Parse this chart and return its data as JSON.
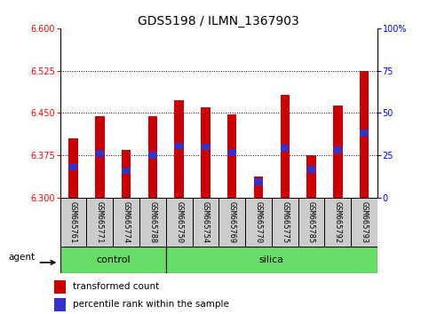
{
  "title": "GDS5198 / ILMN_1367903",
  "samples": [
    "GSM665761",
    "GSM665771",
    "GSM665774",
    "GSM665788",
    "GSM665750",
    "GSM665754",
    "GSM665769",
    "GSM665770",
    "GSM665775",
    "GSM665785",
    "GSM665792",
    "GSM665793"
  ],
  "red_values": [
    6.405,
    6.445,
    6.385,
    6.445,
    6.473,
    6.46,
    6.447,
    6.338,
    6.482,
    6.375,
    6.463,
    6.525
  ],
  "blue_values": [
    6.355,
    6.378,
    6.348,
    6.375,
    6.392,
    6.39,
    6.38,
    6.328,
    6.388,
    6.35,
    6.385,
    6.415
  ],
  "ymin": 6.3,
  "ymax": 6.6,
  "yticks_left": [
    6.3,
    6.375,
    6.45,
    6.525,
    6.6
  ],
  "yticks_right": [
    0,
    25,
    50,
    75,
    100
  ],
  "bar_color": "#cc0000",
  "blue_color": "#3333cc",
  "bar_width": 0.35,
  "control_color": "#66dd66",
  "xlabel_bg": "#cccccc",
  "title_fontsize": 10,
  "tick_fontsize": 7,
  "n_control": 4,
  "n_silica": 8
}
